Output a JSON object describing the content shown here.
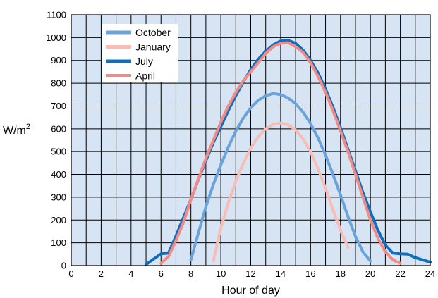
{
  "chart_data": {
    "type": "line",
    "xlabel": "Hour of day",
    "ylabel_base": "W/m",
    "ylabel_sup": "2",
    "xlim": [
      0,
      24
    ],
    "ylim": [
      0,
      1100
    ],
    "x_ticks": [
      0,
      2,
      4,
      6,
      8,
      10,
      12,
      14,
      16,
      18,
      20,
      22,
      24
    ],
    "y_ticks": [
      0,
      100,
      200,
      300,
      400,
      500,
      600,
      700,
      800,
      900,
      1000,
      1100
    ],
    "x_tick_labels": [
      "0",
      "2",
      "4",
      "6",
      "8",
      "10",
      "12",
      "14",
      "16",
      "18",
      "20",
      "22",
      "24"
    ],
    "y_tick_labels": [
      "0",
      "100",
      "200",
      "300",
      "400",
      "500",
      "600",
      "700",
      "800",
      "900",
      "1000",
      "1100"
    ],
    "grid": true,
    "legend_position": "top-left",
    "background": "#d7e4f3",
    "series": [
      {
        "name": "October",
        "color": "#6aa3dc",
        "x": [
          8,
          8.5,
          9,
          9.5,
          10,
          10.5,
          11,
          11.5,
          12,
          12.5,
          13,
          13.5,
          14,
          14.5,
          15,
          15.5,
          16,
          16.5,
          17,
          17.5,
          18,
          18.5,
          19,
          19.5,
          20
        ],
        "y": [
          25,
          144,
          258,
          356,
          442,
          520,
          590,
          647,
          692,
          725,
          745,
          755,
          750,
          735,
          710,
          673,
          623,
          560,
          485,
          400,
          310,
          215,
          128,
          60,
          20
        ]
      },
      {
        "name": "January",
        "color": "#f9bdb6",
        "x": [
          9.5,
          10,
          10.5,
          11,
          11.5,
          12,
          12.5,
          13,
          13.5,
          14,
          14.5,
          15,
          15.5,
          16,
          16.5,
          17,
          17.5,
          18,
          18.5
        ],
        "y": [
          20,
          165,
          275,
          370,
          448,
          515,
          565,
          600,
          620,
          625,
          618,
          595,
          555,
          500,
          425,
          340,
          245,
          155,
          80
        ]
      },
      {
        "name": "July",
        "color": "#0f6fbf",
        "x": [
          5,
          6,
          6.5,
          7,
          7.5,
          8,
          8.5,
          9,
          9.5,
          10,
          10.5,
          11,
          11.5,
          12,
          12.5,
          13,
          13.5,
          14,
          14.5,
          15,
          15.5,
          16,
          16.5,
          17,
          17.5,
          18,
          18.5,
          19,
          19.5,
          20,
          20.5,
          21,
          21.5,
          22,
          22.5,
          23,
          24
        ],
        "y": [
          5,
          52,
          55,
          130,
          210,
          290,
          378,
          460,
          540,
          610,
          680,
          745,
          805,
          860,
          905,
          940,
          968,
          985,
          988,
          975,
          945,
          900,
          845,
          775,
          695,
          605,
          510,
          415,
          320,
          235,
          155,
          90,
          55,
          52,
          50,
          35,
          15
        ]
      },
      {
        "name": "April",
        "color": "#f28a85",
        "x": [
          6,
          6.5,
          7,
          7.5,
          8,
          8.5,
          9,
          9.5,
          10,
          10.5,
          11,
          11.5,
          12,
          12.5,
          13,
          13.5,
          14,
          14.5,
          15,
          15.5,
          16,
          16.5,
          17,
          17.5,
          18,
          18.5,
          19,
          19.5,
          20,
          20.5,
          21,
          21.5,
          22
        ],
        "y": [
          10,
          40,
          110,
          190,
          290,
          380,
          470,
          550,
          630,
          700,
          760,
          810,
          850,
          890,
          930,
          960,
          975,
          978,
          960,
          935,
          890,
          830,
          760,
          680,
          590,
          500,
          400,
          300,
          200,
          120,
          60,
          25,
          10
        ]
      }
    ]
  }
}
